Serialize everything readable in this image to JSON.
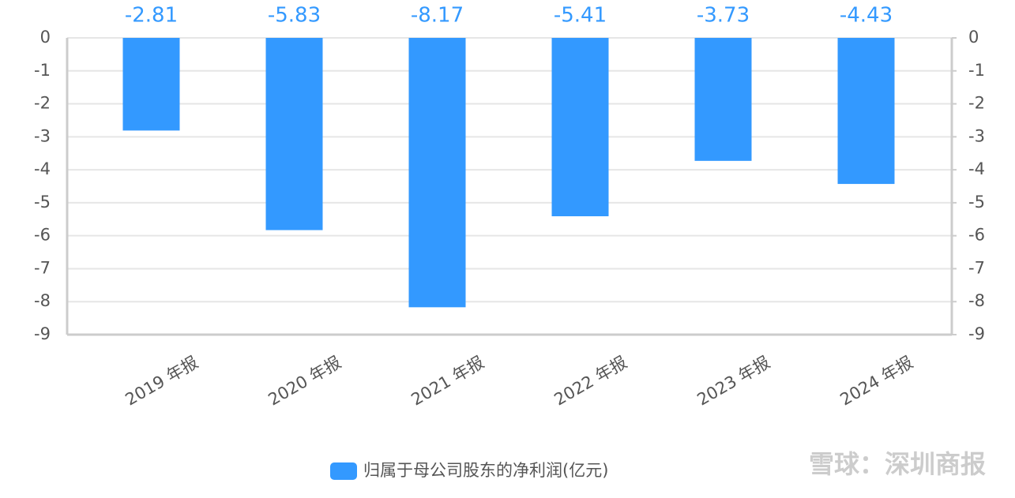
{
  "chart_data": {
    "type": "bar",
    "categories": [
      "2019 年报",
      "2020 年报",
      "2021 年报",
      "2022 年报",
      "2023 年报",
      "2024 年报"
    ],
    "series": [
      {
        "name": "归属于母公司股东的净利润(亿元)",
        "color": "#3399ff",
        "values": [
          -2.81,
          -5.83,
          -8.17,
          -5.41,
          -3.73,
          -4.43
        ]
      }
    ],
    "ylim": [
      -9,
      0
    ],
    "yticks": [
      0,
      -1,
      -2,
      -3,
      -4,
      -5,
      -6,
      -7,
      -8,
      -9
    ],
    "y2lim": [
      -9,
      0
    ],
    "y2ticks": [
      0,
      -1,
      -2,
      -3,
      -4,
      -5,
      -6,
      -7,
      -8,
      -9
    ],
    "grid": true,
    "legend": "bottom",
    "watermark": "雪球：深圳商报"
  }
}
